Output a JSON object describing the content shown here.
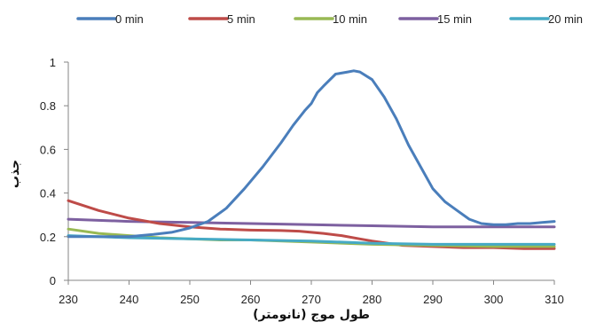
{
  "chart_data": {
    "type": "line",
    "xlabel": "طول موج (نانومتر)",
    "ylabel": "جذب",
    "xlim": [
      230,
      310
    ],
    "ylim": [
      0,
      1
    ],
    "x_ticks": [
      230,
      240,
      250,
      260,
      270,
      280,
      290,
      300,
      310
    ],
    "y_ticks": [
      0,
      0.2,
      0.4,
      0.6,
      0.8,
      1
    ],
    "y_tick_labels": [
      "0",
      "0.2",
      "0.4",
      "0.6",
      "0.8",
      "1"
    ],
    "grid": false,
    "legend_position": "top",
    "series": [
      {
        "name": "0 min",
        "color": "#4a7ebb",
        "x": [
          230,
          235,
          240,
          244,
          247,
          250,
          253,
          256,
          259,
          262,
          265,
          267,
          269,
          270,
          271,
          272,
          274,
          276,
          277,
          278,
          280,
          282,
          284,
          286,
          288,
          290,
          292,
          294,
          296,
          298,
          300,
          302,
          304,
          306,
          308,
          310
        ],
        "y": [
          0.2,
          0.2,
          0.2,
          0.21,
          0.22,
          0.24,
          0.27,
          0.33,
          0.42,
          0.52,
          0.63,
          0.71,
          0.78,
          0.81,
          0.86,
          0.89,
          0.945,
          0.955,
          0.96,
          0.955,
          0.92,
          0.84,
          0.74,
          0.62,
          0.52,
          0.42,
          0.36,
          0.32,
          0.28,
          0.26,
          0.255,
          0.255,
          0.26,
          0.26,
          0.265,
          0.27
        ]
      },
      {
        "name": "5 min",
        "color": "#be4b48",
        "x": [
          230,
          235,
          240,
          245,
          250,
          255,
          260,
          265,
          268,
          270,
          272,
          275,
          278,
          280,
          285,
          290,
          295,
          300,
          305,
          310
        ],
        "y": [
          0.365,
          0.32,
          0.285,
          0.26,
          0.245,
          0.235,
          0.23,
          0.228,
          0.225,
          0.22,
          0.215,
          0.205,
          0.19,
          0.18,
          0.16,
          0.155,
          0.15,
          0.15,
          0.145,
          0.145
        ]
      },
      {
        "name": "10 min",
        "color": "#98b954",
        "x": [
          230,
          235,
          240,
          245,
          250,
          255,
          260,
          270,
          280,
          290,
          300,
          310
        ],
        "y": [
          0.235,
          0.215,
          0.205,
          0.195,
          0.19,
          0.185,
          0.185,
          0.175,
          0.165,
          0.16,
          0.155,
          0.155
        ]
      },
      {
        "name": "15 min",
        "color": "#7d60a0",
        "x": [
          230,
          240,
          250,
          260,
          270,
          280,
          290,
          300,
          310
        ],
        "y": [
          0.28,
          0.27,
          0.265,
          0.26,
          0.255,
          0.25,
          0.245,
          0.245,
          0.245
        ]
      },
      {
        "name": "20 min",
        "color": "#46aac5",
        "x": [
          230,
          240,
          250,
          260,
          270,
          280,
          290,
          300,
          310
        ],
        "y": [
          0.205,
          0.195,
          0.19,
          0.185,
          0.18,
          0.17,
          0.165,
          0.165,
          0.165
        ]
      }
    ]
  }
}
